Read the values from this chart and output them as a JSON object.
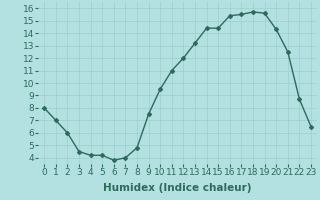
{
  "x": [
    0,
    1,
    2,
    3,
    4,
    5,
    6,
    7,
    8,
    9,
    10,
    11,
    12,
    13,
    14,
    15,
    16,
    17,
    18,
    19,
    20,
    21,
    22,
    23
  ],
  "y": [
    8,
    7,
    6,
    4.5,
    4.2,
    4.2,
    3.8,
    4.0,
    4.8,
    7.5,
    9.5,
    11.0,
    12.0,
    13.2,
    14.4,
    14.4,
    15.4,
    15.5,
    15.7,
    15.6,
    14.3,
    12.5,
    8.7,
    6.5
  ],
  "line_color": "#2e6b5e",
  "marker": "D",
  "marker_size": 2.0,
  "line_width": 1.0,
  "bg_color": "#b3e0e0",
  "grid_color": "#c8e8e8",
  "xlabel": "Humidex (Indice chaleur)",
  "xlim": [
    -0.5,
    23.5
  ],
  "ylim": [
    3.5,
    16.5
  ],
  "yticks": [
    4,
    5,
    6,
    7,
    8,
    9,
    10,
    11,
    12,
    13,
    14,
    15,
    16
  ],
  "xticks": [
    0,
    1,
    2,
    3,
    4,
    5,
    6,
    7,
    8,
    9,
    10,
    11,
    12,
    13,
    14,
    15,
    16,
    17,
    18,
    19,
    20,
    21,
    22,
    23
  ],
  "xlabel_fontsize": 7.5,
  "tick_fontsize": 6.5
}
